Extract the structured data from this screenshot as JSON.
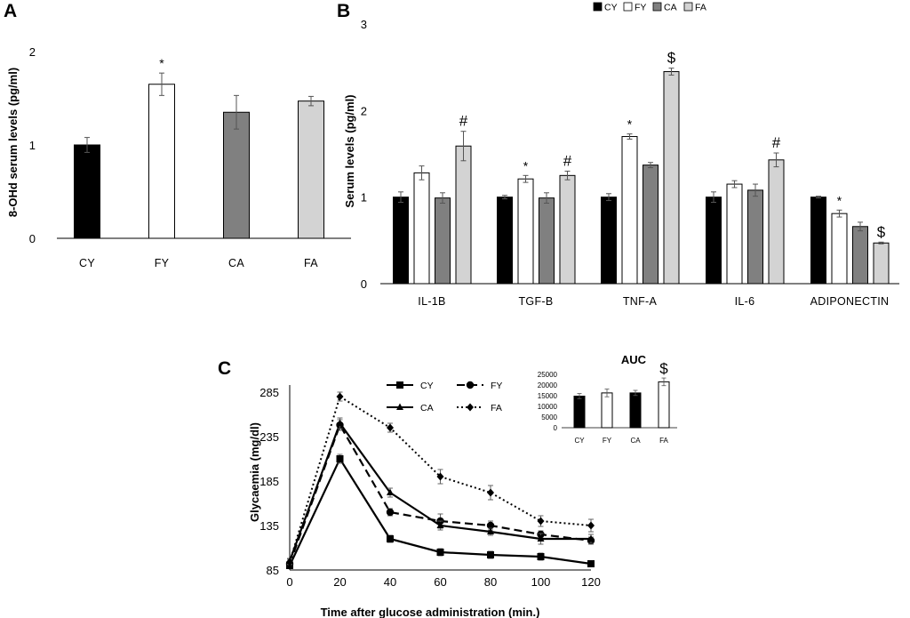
{
  "chart_data": [
    {
      "panel": "A",
      "type": "bar",
      "ylabel": "8-OHd serum levels (pg/ml)",
      "ylim": [
        0,
        2
      ],
      "yticks": [
        "0",
        "1",
        "2"
      ],
      "categories": [
        "CY",
        "FY",
        "CA",
        "FA"
      ],
      "values": [
        1.0,
        1.65,
        1.35,
        1.47
      ],
      "errors": [
        0.08,
        0.12,
        0.18,
        0.05
      ],
      "colors": [
        "#000000",
        "#ffffff",
        "#808080",
        "#d3d3d3"
      ],
      "annotations": [
        "",
        "*",
        "",
        ""
      ]
    },
    {
      "panel": "B",
      "type": "bar",
      "ylabel": "Serum levels (pg/ml)",
      "ylim": [
        0,
        3
      ],
      "yticks": [
        "0",
        "1",
        "2",
        "3"
      ],
      "categories": [
        "IL-1B",
        "TGF-B",
        "TNF-A",
        "IL-6",
        "ADIPONECTIN"
      ],
      "legend": [
        "CY",
        "FY",
        "CA",
        "FA"
      ],
      "colors": [
        "#000000",
        "#ffffff",
        "#808080",
        "#d3d3d3"
      ],
      "series": [
        {
          "name": "CY",
          "values": [
            1.0,
            1.0,
            1.0,
            1.0,
            1.0
          ],
          "errors": [
            0.06,
            0.02,
            0.04,
            0.06,
            0.01
          ]
        },
        {
          "name": "FY",
          "values": [
            1.28,
            1.21,
            1.7,
            1.15,
            0.81
          ],
          "errors": [
            0.08,
            0.04,
            0.03,
            0.04,
            0.04
          ]
        },
        {
          "name": "CA",
          "values": [
            0.99,
            0.99,
            1.37,
            1.08,
            0.66
          ],
          "errors": [
            0.06,
            0.06,
            0.03,
            0.07,
            0.05
          ]
        },
        {
          "name": "FA",
          "values": [
            1.59,
            1.25,
            2.45,
            1.43,
            0.47
          ],
          "errors": [
            0.17,
            0.05,
            0.04,
            0.08,
            0.01
          ]
        }
      ],
      "annotations": {
        "FY": [
          "",
          "*",
          "*",
          "",
          "*"
        ],
        "FA": [
          "#",
          "#",
          "$",
          "#",
          "$"
        ]
      }
    },
    {
      "panel": "C",
      "type": "line",
      "xlabel": "Time after glucose administration (min.)",
      "ylabel": "Glycaemia (mg/dl)",
      "x": [
        0,
        20,
        40,
        60,
        80,
        100,
        120
      ],
      "xlim": [
        0,
        120
      ],
      "ylim": [
        85,
        295
      ],
      "yticks": [
        "85",
        "135",
        "185",
        "235",
        "285"
      ],
      "xticks": [
        "0",
        "20",
        "40",
        "60",
        "80",
        "100",
        "120"
      ],
      "series": [
        {
          "name": "CY",
          "values": [
            90,
            210,
            120,
            105,
            102,
            100,
            92
          ],
          "errors": [
            3,
            5,
            4,
            4,
            4,
            4,
            3
          ],
          "marker": "square",
          "dash": "solid"
        },
        {
          "name": "FY",
          "values": [
            92,
            248,
            150,
            140,
            135,
            125,
            118
          ],
          "errors": [
            3,
            6,
            4,
            8,
            5,
            4,
            4
          ],
          "marker": "circle",
          "dash": "dashed"
        },
        {
          "name": "CA",
          "values": [
            95,
            250,
            172,
            135,
            128,
            120,
            120
          ],
          "errors": [
            3,
            6,
            5,
            5,
            4,
            6,
            5
          ],
          "marker": "triangle",
          "dash": "solid"
        },
        {
          "name": "FA",
          "values": [
            94,
            280,
            245,
            190,
            172,
            140,
            135
          ],
          "errors": [
            3,
            5,
            5,
            8,
            8,
            6,
            7
          ],
          "marker": "diamond",
          "dash": "dotted"
        }
      ]
    },
    {
      "panel": "C-inset",
      "type": "bar",
      "title": "AUC",
      "ylim": [
        0,
        25000
      ],
      "yticks": [
        "0",
        "5000",
        "10000",
        "15000",
        "20000",
        "25000"
      ],
      "categories": [
        "CY",
        "FY",
        "CA",
        "FA"
      ],
      "values": [
        14800,
        16300,
        16300,
        21500
      ],
      "errors": [
        1200,
        1800,
        1200,
        1800
      ],
      "colors": [
        "#000000",
        "#ffffff",
        "#000000",
        "#ffffff"
      ],
      "annotations": [
        "",
        "",
        "",
        "$"
      ]
    }
  ],
  "labels": {
    "panel_a": "A",
    "panel_b": "B",
    "panel_c": "C"
  }
}
